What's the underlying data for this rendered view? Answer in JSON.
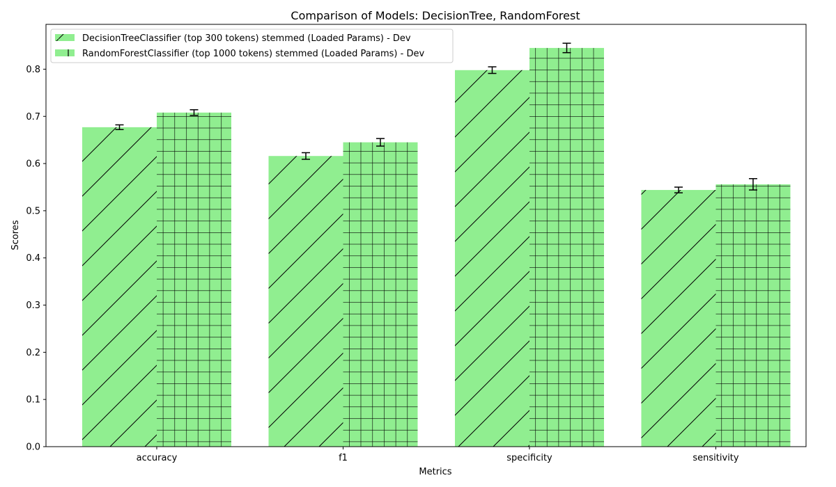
{
  "chart_data": {
    "type": "bar",
    "title": "Comparison of Models: DecisionTree, RandomForest",
    "xlabel": "Metrics",
    "ylabel": "Scores",
    "categories": [
      "accuracy",
      "f1",
      "specificity",
      "sensitivity"
    ],
    "ylim": [
      0,
      0.895
    ],
    "yticks": [
      0.0,
      0.1,
      0.2,
      0.3,
      0.4,
      0.5,
      0.6,
      0.7,
      0.8
    ],
    "ytick_labels": [
      "0.0",
      "0.1",
      "0.2",
      "0.3",
      "0.4",
      "0.5",
      "0.6",
      "0.7",
      "0.8"
    ],
    "grid": false,
    "legend_position": "top-left",
    "bar_color": "#90ee90",
    "series": [
      {
        "name": "DecisionTreeClassifier (top 300 tokens) stemmed (Loaded Params) - Dev",
        "values": [
          0.677,
          0.616,
          0.798,
          0.544
        ],
        "errors": [
          0.005,
          0.007,
          0.007,
          0.006
        ],
        "hatch": "diagonal"
      },
      {
        "name": "RandomForestClassifier (top 1000 tokens) stemmed (Loaded Params) - Dev",
        "values": [
          0.708,
          0.645,
          0.845,
          0.556
        ],
        "errors": [
          0.006,
          0.008,
          0.01,
          0.012
        ],
        "hatch": "grid"
      }
    ]
  }
}
